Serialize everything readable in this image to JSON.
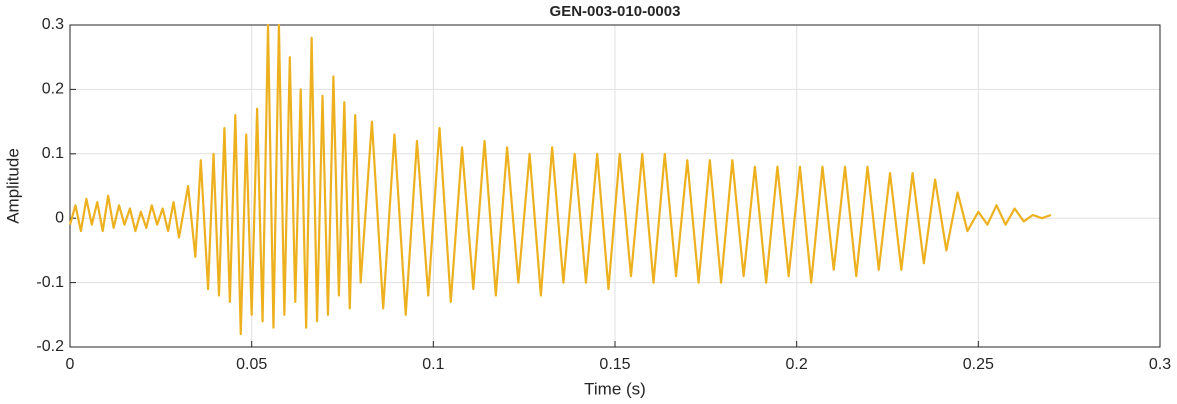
{
  "chart_data": {
    "type": "line",
    "title": "GEN-003-010-0003",
    "x_label": "Time (s)",
    "y_label": "Amplitude",
    "xlim": [
      0,
      0.3
    ],
    "ylim": [
      -0.2,
      0.3
    ],
    "xticks": [
      0,
      0.05,
      0.1,
      0.15,
      0.2,
      0.25,
      0.3
    ],
    "yticks": [
      -0.2,
      -0.1,
      0,
      0.1,
      0.2,
      0.3
    ],
    "grid": true,
    "series": [
      {
        "color": "#edb120",
        "x": [
          0,
          0.0015,
          0.003,
          0.0045,
          0.006,
          0.0075,
          0.009,
          0.0105,
          0.012,
          0.0135,
          0.015,
          0.0165,
          0.018,
          0.0195,
          0.021,
          0.0225,
          0.024,
          0.0255,
          0.027,
          0.0285,
          0.03,
          0.0325,
          0.0345,
          0.036,
          0.038,
          0.0395,
          0.041,
          0.0425,
          0.044,
          0.0455,
          0.047,
          0.0485,
          0.05,
          0.0515,
          0.053,
          0.0545,
          0.056,
          0.0575,
          0.059,
          0.0605,
          0.062,
          0.0635,
          0.065,
          0.0665,
          0.068,
          0.0695,
          0.071,
          0.0725,
          0.074,
          0.0755,
          0.077,
          0.0785,
          0.08,
          0.0831,
          0.0862,
          0.0893,
          0.0924,
          0.0955,
          0.0986,
          0.1017,
          0.1048,
          0.1079,
          0.111,
          0.1141,
          0.1172,
          0.1203,
          0.1234,
          0.1265,
          0.1296,
          0.1327,
          0.1358,
          0.1389,
          0.142,
          0.1451,
          0.1482,
          0.1513,
          0.1544,
          0.1575,
          0.1606,
          0.1637,
          0.1668,
          0.1699,
          0.173,
          0.1761,
          0.1792,
          0.1823,
          0.1854,
          0.1885,
          0.1916,
          0.1947,
          0.1978,
          0.2009,
          0.204,
          0.2071,
          0.2102,
          0.2133,
          0.2164,
          0.2195,
          0.2226,
          0.2257,
          0.2288,
          0.2319,
          0.235,
          0.2381,
          0.2412,
          0.2443,
          0.247,
          0.25,
          0.2525,
          0.255,
          0.2575,
          0.26,
          0.2625,
          0.265,
          0.2675,
          0.27
        ],
        "values": [
          -0.01,
          0.02,
          -0.02,
          0.03,
          -0.01,
          0.025,
          -0.02,
          0.035,
          -0.015,
          0.02,
          -0.01,
          0.015,
          -0.02,
          0.01,
          -0.015,
          0.02,
          -0.01,
          0.015,
          -0.02,
          0.025,
          -0.03,
          0.05,
          -0.06,
          0.09,
          -0.11,
          0.1,
          -0.12,
          0.14,
          -0.13,
          0.16,
          -0.18,
          0.13,
          -0.15,
          0.17,
          -0.16,
          0.3,
          -0.17,
          0.3,
          -0.15,
          0.25,
          -0.13,
          0.2,
          -0.17,
          0.28,
          -0.16,
          0.19,
          -0.15,
          0.22,
          -0.12,
          0.18,
          -0.14,
          0.16,
          -0.1,
          0.15,
          -0.14,
          0.13,
          -0.15,
          0.12,
          -0.12,
          0.14,
          -0.13,
          0.11,
          -0.11,
          0.12,
          -0.12,
          0.11,
          -0.1,
          0.1,
          -0.12,
          0.11,
          -0.1,
          0.1,
          -0.1,
          0.1,
          -0.11,
          0.1,
          -0.09,
          0.1,
          -0.1,
          0.1,
          -0.09,
          0.09,
          -0.1,
          0.09,
          -0.1,
          0.09,
          -0.09,
          0.08,
          -0.1,
          0.08,
          -0.09,
          0.08,
          -0.1,
          0.08,
          -0.08,
          0.08,
          -0.09,
          0.08,
          -0.08,
          0.07,
          -0.08,
          0.07,
          -0.07,
          0.06,
          -0.05,
          0.04,
          -0.02,
          0.01,
          -0.01,
          0.02,
          -0.01,
          0.015,
          -0.005,
          0.005,
          0,
          0.005
        ]
      }
    ]
  }
}
